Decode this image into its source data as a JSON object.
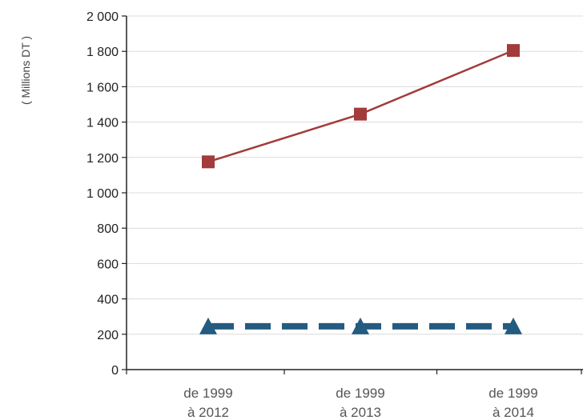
{
  "chart_data": {
    "type": "line",
    "title": "",
    "xlabel": "",
    "ylabel": "( Millions DT )",
    "categories": [
      [
        "de 1999",
        "à 2012"
      ],
      [
        "de 1999",
        "à 2013"
      ],
      [
        "de 1999",
        "à 2014"
      ]
    ],
    "ylim": [
      0,
      2000
    ],
    "yticks": [
      0,
      200,
      400,
      600,
      800,
      1000,
      1200,
      1400,
      1600,
      1800,
      2000
    ],
    "ytick_labels": [
      "0",
      "200",
      "400",
      "600",
      "800",
      "1 000",
      "1 200",
      "1 400",
      "1 600",
      "1 800",
      "2 000"
    ],
    "grid": true,
    "series": [
      {
        "values": [
          1175,
          1445,
          1805
        ],
        "color": "#a23b3b",
        "marker": "square",
        "line_style": "solid"
      },
      {
        "values": [
          245,
          245,
          245
        ],
        "color": "#245b80",
        "marker": "triangle",
        "line_style": "dashed"
      }
    ]
  }
}
